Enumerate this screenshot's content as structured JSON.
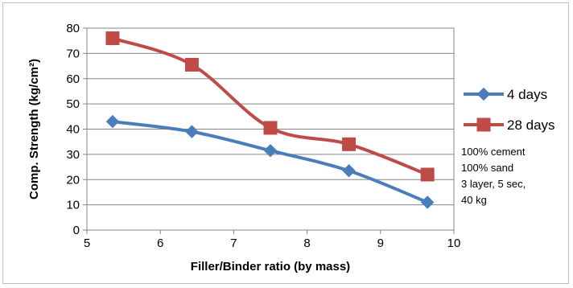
{
  "chart_data": {
    "type": "line",
    "title": "",
    "xlabel": "Filler/Binder ratio (by mass)",
    "ylabel": "Comp. Strength (kg/cm²)",
    "xlim": [
      5,
      10
    ],
    "ylim": [
      0,
      80
    ],
    "xticks": [
      5,
      6,
      7,
      8,
      9,
      10
    ],
    "yticks": [
      0,
      10,
      20,
      30,
      40,
      50,
      60,
      70,
      80
    ],
    "grid": "horizontal",
    "legend_position": "right",
    "series": [
      {
        "name": "4 days",
        "color": "#4a7ebb",
        "marker": "diamond",
        "x": [
          5.35,
          6.43,
          7.5,
          8.57,
          9.64
        ],
        "y": [
          43,
          39,
          31.5,
          23.5,
          11
        ]
      },
      {
        "name": "28 days",
        "color": "#be4b48",
        "marker": "square",
        "x": [
          5.35,
          6.43,
          7.5,
          8.57,
          9.64
        ],
        "y": [
          76,
          65.5,
          40.5,
          34,
          22
        ]
      }
    ],
    "annotation": [
      "100% cement",
      "100% sand",
      "3 layer, 5 sec,",
      "40 kg"
    ]
  }
}
